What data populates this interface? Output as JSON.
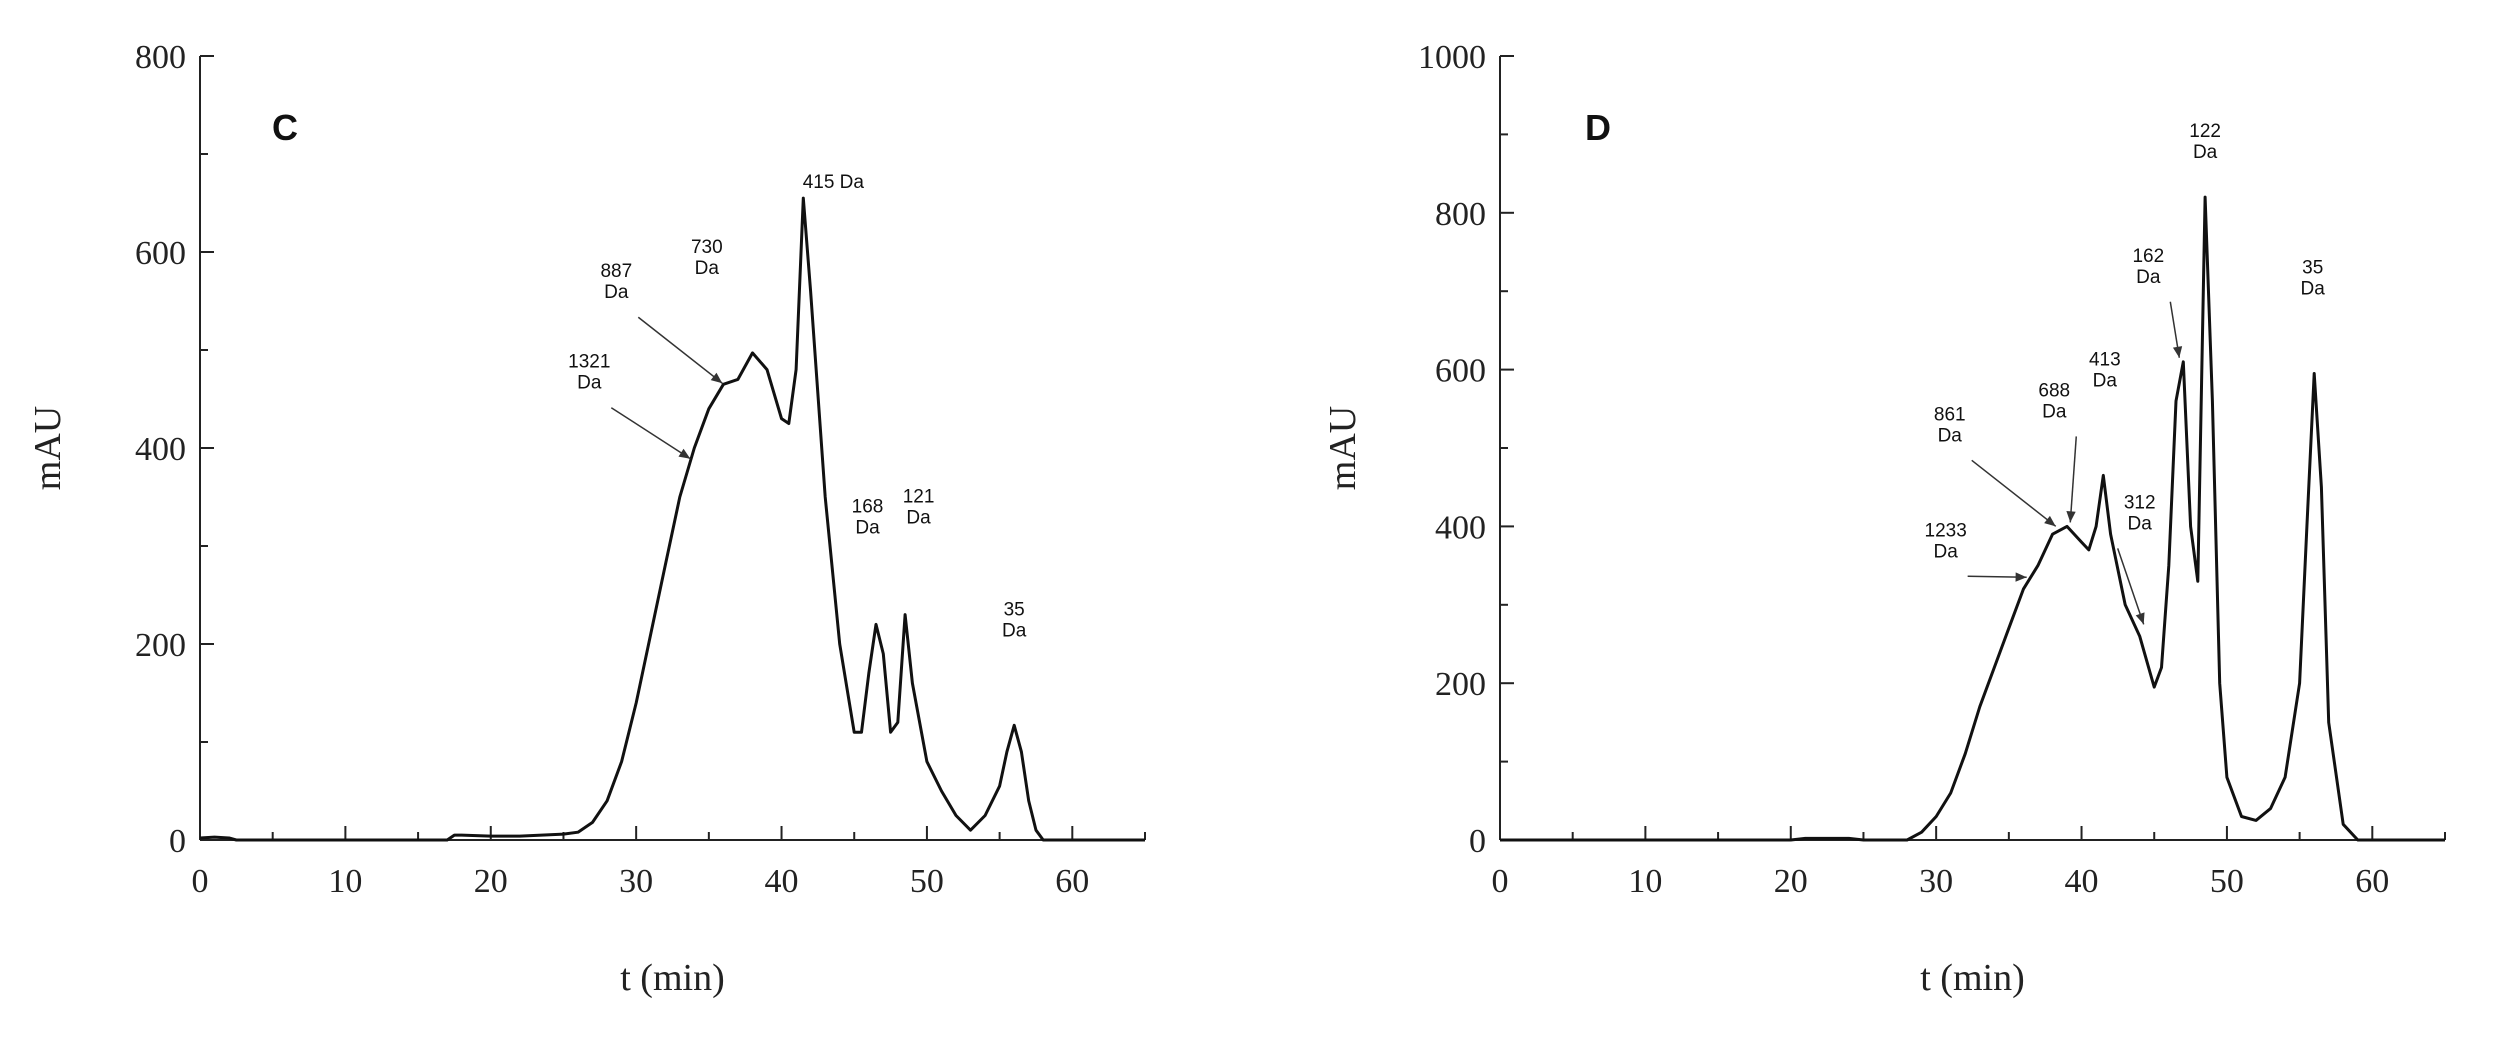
{
  "chart_data": [
    {
      "type": "line",
      "panel_label": "C",
      "xlabel": "t (min)",
      "ylabel": "mAU",
      "xlim": [
        0,
        65
      ],
      "ylim": [
        0,
        800
      ],
      "xticks": [
        0,
        10,
        20,
        30,
        40,
        50,
        60
      ],
      "yticks": [
        0,
        200,
        400,
        600,
        800
      ],
      "grid": false,
      "series": [
        {
          "x": [
            0,
            1,
            2,
            2.5,
            5,
            10,
            15,
            17,
            17.5,
            18,
            20,
            22,
            25,
            26,
            27,
            28,
            29,
            30,
            31,
            32,
            33,
            34,
            35,
            36,
            37,
            38,
            39,
            40,
            40.5,
            41,
            41.5,
            42,
            43,
            44,
            45,
            45.5,
            46,
            46.5,
            47,
            47.5,
            48,
            48.5,
            49,
            50,
            51,
            52,
            53,
            54,
            55,
            55.5,
            56,
            56.5,
            57,
            57.5,
            58,
            65
          ],
          "y": [
            2,
            3,
            2,
            0,
            0,
            0,
            0,
            0,
            5,
            5,
            4,
            4,
            6,
            8,
            18,
            40,
            80,
            140,
            210,
            280,
            350,
            400,
            440,
            465,
            470,
            497,
            480,
            430,
            425,
            480,
            655,
            560,
            350,
            200,
            110,
            110,
            170,
            220,
            190,
            110,
            120,
            230,
            160,
            80,
            50,
            25,
            10,
            25,
            55,
            90,
            117,
            90,
            40,
            10,
            0,
            0
          ]
        }
      ],
      "annotations": [
        {
          "text": [
            "415 Da"
          ],
          "x": 41.5,
          "y": 655
        },
        {
          "text": [
            "730",
            "Da"
          ],
          "x": 38.3,
          "y": 497
        },
        {
          "text": [
            "887",
            "Da"
          ],
          "x": 36.2,
          "y": 462
        },
        {
          "text": [
            "1321",
            "Da"
          ],
          "x": 34.0,
          "y": 385
        },
        {
          "text": [
            "168",
            "Da"
          ],
          "x": 46.6,
          "y": 222
        },
        {
          "text": [
            "121",
            "Da"
          ],
          "x": 48.6,
          "y": 232
        },
        {
          "text": [
            "35",
            "Da"
          ],
          "x": 56.0,
          "y": 117
        }
      ]
    },
    {
      "type": "line",
      "panel_label": "D",
      "xlabel": "t (min)",
      "ylabel": "mAU",
      "xlim": [
        0,
        65
      ],
      "ylim": [
        0,
        1000
      ],
      "xticks": [
        0,
        10,
        20,
        30,
        40,
        50,
        60
      ],
      "yticks": [
        0,
        200,
        400,
        600,
        800,
        1000
      ],
      "grid": false,
      "series": [
        {
          "x": [
            0,
            20,
            21,
            24,
            25,
            28,
            29,
            30,
            31,
            32,
            33,
            34,
            35,
            36,
            37,
            38,
            39,
            40,
            40.5,
            41,
            41.5,
            42,
            43,
            44,
            45,
            45.5,
            46,
            46.5,
            47,
            47.5,
            48,
            48.5,
            49,
            49.5,
            50,
            51,
            52,
            53,
            54,
            55,
            55.5,
            56,
            56.5,
            57,
            58,
            59,
            65
          ],
          "y": [
            0,
            0,
            2,
            2,
            0,
            0,
            10,
            30,
            60,
            110,
            170,
            220,
            270,
            320,
            350,
            390,
            400,
            380,
            370,
            400,
            465,
            390,
            300,
            260,
            195,
            220,
            350,
            560,
            610,
            400,
            330,
            820,
            560,
            200,
            80,
            30,
            25,
            40,
            80,
            200,
            400,
            595,
            450,
            150,
            20,
            0,
            0
          ]
        }
      ],
      "annotations": [
        {
          "text": [
            "122",
            "Da"
          ],
          "x": 48.5,
          "y": 820
        },
        {
          "text": [
            "162",
            "Da"
          ],
          "x": 47.0,
          "y": 610
        },
        {
          "text": [
            "35",
            "Da"
          ],
          "x": 55.9,
          "y": 595
        },
        {
          "text": [
            "688",
            "Da"
          ],
          "x": 39.5,
          "y": 400
        },
        {
          "text": [
            "861",
            "Da"
          ],
          "x": 38.5,
          "y": 395
        },
        {
          "text": [
            "413",
            "Da"
          ],
          "x": 41.6,
          "y": 465
        },
        {
          "text": [
            "312",
            "Da"
          ],
          "x": 44.0,
          "y": 270
        },
        {
          "text": [
            "1233",
            "Da"
          ],
          "x": 36.5,
          "y": 330
        }
      ]
    }
  ]
}
